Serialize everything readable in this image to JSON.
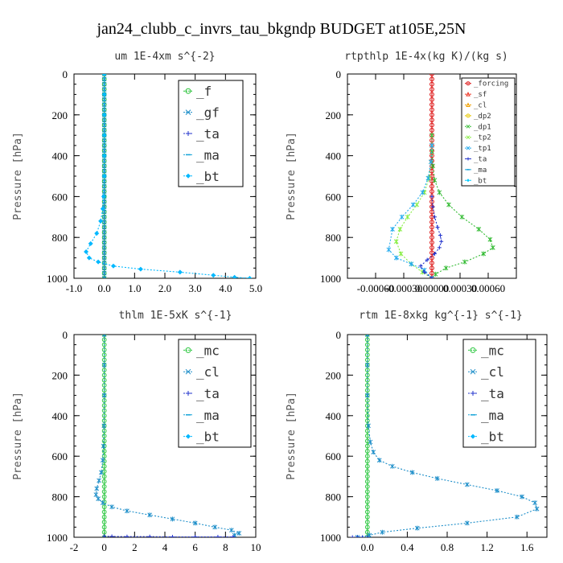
{
  "figure": {
    "title": "jan24_clubb_c_invrs_tau_bkgndp  BUDGET at105E,25N"
  },
  "colors": {
    "f": "#22c032",
    "gf": "#1d8ec9",
    "ta": "#2233cc",
    "ma": "#17a4d8",
    "bt": "#00b8ff",
    "mc": "#2ec842",
    "cl": "#1d8ec9",
    "forcing": "#dd1111",
    "sf": "#ee3322",
    "cl_rt": "#f0a000",
    "dp2": "#e8c800",
    "dp1": "#33bb33",
    "tp2": "#88ee44",
    "tp1": "#22aaee",
    "ta_rt": "#2233cc",
    "ma_rt": "#17a4d8",
    "bt_rt": "#00ccff"
  },
  "chart_data": [
    {
      "type": "line",
      "title": "um  1E-4xm s^{-2}",
      "ylabel": "Pressure [hPa]",
      "xlim": [
        -1.0,
        5.0
      ],
      "ylim": [
        1000,
        0
      ],
      "xticks": [
        -1.0,
        0.0,
        1.0,
        2.0,
        3.0,
        4.0,
        5.0
      ],
      "xtick_labels": [
        "-1.0",
        "0.0",
        "1.0",
        "2.0",
        "3.0",
        "4.0",
        "5.0"
      ],
      "yticks": [
        0,
        200,
        400,
        600,
        800,
        1000
      ],
      "ytick_labels": [
        "0",
        "200",
        "400",
        "600",
        "800",
        "1000"
      ],
      "legend": [
        "_f",
        "_gf",
        "_ta",
        "_ma",
        "_bt"
      ],
      "legend_position": "top-right",
      "series": [
        {
          "name": "_f",
          "color_key": "f",
          "marker": "circle",
          "x": [
            0,
            0,
            0,
            0,
            0,
            0,
            0,
            0,
            0,
            0,
            0,
            0,
            0,
            0,
            0,
            0,
            0,
            0,
            0,
            0,
            0,
            0,
            0,
            0,
            0,
            0,
            0,
            0,
            0,
            0,
            0,
            0,
            0,
            0,
            0,
            0,
            0,
            0,
            0,
            0,
            0
          ],
          "y": [
            0,
            25,
            50,
            75,
            100,
            125,
            150,
            175,
            200,
            225,
            250,
            275,
            300,
            325,
            350,
            375,
            400,
            425,
            450,
            475,
            500,
            525,
            550,
            575,
            600,
            625,
            650,
            675,
            700,
            725,
            750,
            775,
            800,
            825,
            850,
            875,
            900,
            925,
            950,
            975,
            1000
          ]
        },
        {
          "name": "_gf",
          "color_key": "gf",
          "marker": "star",
          "x": [
            0,
            0,
            0,
            0,
            0,
            0,
            0,
            0,
            0,
            0,
            0,
            0,
            0,
            0,
            0,
            0,
            0,
            0,
            0,
            0,
            0,
            0,
            0,
            0,
            0,
            0,
            0,
            0,
            0,
            0,
            0,
            0,
            0,
            0,
            0,
            0,
            0,
            0,
            0,
            0,
            0
          ],
          "y": [
            0,
            25,
            50,
            75,
            100,
            125,
            150,
            175,
            200,
            225,
            250,
            275,
            300,
            325,
            350,
            375,
            400,
            425,
            450,
            475,
            500,
            525,
            550,
            575,
            600,
            625,
            650,
            675,
            700,
            725,
            750,
            775,
            800,
            825,
            850,
            875,
            900,
            925,
            950,
            975,
            1000
          ]
        },
        {
          "name": "_bt",
          "color_key": "bt",
          "marker": "diamond",
          "x": [
            0,
            0,
            0,
            0,
            0,
            0,
            -0.02,
            -0.05,
            -0.12,
            -0.25,
            -0.45,
            -0.6,
            -0.5,
            -0.2,
            0.3,
            1.2,
            2.5,
            3.6,
            4.3,
            4.8
          ],
          "y": [
            0,
            100,
            200,
            300,
            400,
            500,
            600,
            660,
            720,
            780,
            830,
            870,
            900,
            920,
            940,
            955,
            970,
            985,
            995,
            1000
          ]
        }
      ]
    },
    {
      "type": "line",
      "title": "rtpthlp  1E-4x(kg K)/(kg s)",
      "ylabel": "Pressure [hPa]",
      "xlim": [
        -0.0009,
        0.0009
      ],
      "ylim": [
        1000,
        0
      ],
      "xticks": [
        -0.0006,
        -0.0003,
        0.0,
        0.0003,
        0.0006
      ],
      "xtick_labels": [
        "-0.00060",
        "-0.00030",
        "0.00000",
        "0.00030",
        "0.00060"
      ],
      "yticks": [
        0,
        200,
        400,
        600,
        800,
        1000
      ],
      "ytick_labels": [
        "0",
        "200",
        "400",
        "600",
        "800",
        "1000"
      ],
      "legend": [
        "_forcing",
        "_sf",
        "_cl",
        "_dp2",
        "_dp1",
        "_tp2",
        "_tp1",
        "_ta",
        "_ma",
        "_bt"
      ],
      "legend_position": "top-right",
      "series": [
        {
          "name": "_forcing",
          "color_key": "forcing",
          "marker": "circle",
          "x": [
            0,
            0,
            0,
            0,
            0,
            0,
            0,
            0,
            0,
            0,
            0,
            0,
            0,
            0,
            0,
            0,
            0,
            0,
            0,
            0,
            0,
            0,
            0,
            0,
            0,
            0,
            0,
            0,
            0,
            0,
            0,
            0,
            0,
            0,
            0,
            0,
            0,
            0,
            0,
            0,
            0
          ],
          "y": [
            0,
            25,
            50,
            75,
            100,
            125,
            150,
            175,
            200,
            225,
            250,
            275,
            300,
            325,
            350,
            375,
            400,
            425,
            450,
            475,
            500,
            525,
            550,
            575,
            600,
            625,
            650,
            675,
            700,
            725,
            750,
            775,
            800,
            825,
            850,
            875,
            900,
            925,
            950,
            975,
            1000
          ]
        },
        {
          "name": "_dp1",
          "color_key": "dp1",
          "marker": "star",
          "x": [
            0,
            0,
            1e-05,
            3e-05,
            8e-05,
            0.00018,
            0.00032,
            0.0005,
            0.00062,
            0.00065,
            0.00055,
            0.00035,
            0.00015,
            4e-05,
            0
          ],
          "y": [
            300,
            380,
            450,
            520,
            580,
            640,
            700,
            760,
            810,
            850,
            880,
            920,
            950,
            980,
            1000
          ]
        },
        {
          "name": "_tp2",
          "color_key": "tp2",
          "marker": "star",
          "x": [
            0,
            -1e-05,
            -3e-05,
            -8e-05,
            -0.00016,
            -0.00026,
            -0.00034,
            -0.00038,
            -0.00033,
            -0.00022,
            -0.0001,
            0
          ],
          "y": [
            350,
            430,
            510,
            580,
            640,
            700,
            760,
            820,
            880,
            930,
            970,
            1000
          ]
        },
        {
          "name": "_tp1",
          "color_key": "tp1",
          "marker": "star",
          "x": [
            0,
            -1e-05,
            -4e-05,
            -0.0001,
            -0.0002,
            -0.00032,
            -0.00042,
            -0.00046,
            -0.00038,
            -0.00022,
            -8e-05,
            0
          ],
          "y": [
            350,
            430,
            510,
            580,
            640,
            700,
            760,
            860,
            900,
            930,
            960,
            1000
          ]
        },
        {
          "name": "_ta",
          "color_key": "ta_rt",
          "marker": "plus",
          "x": [
            0,
            1e-05,
            3e-05,
            6e-05,
            9e-05,
            0.0001,
            8e-05,
            3e-05,
            -5e-05,
            -0.00012,
            -8e-05,
            0
          ],
          "y": [
            600,
            650,
            700,
            750,
            790,
            820,
            850,
            880,
            910,
            940,
            970,
            1000
          ]
        }
      ]
    },
    {
      "type": "line",
      "title": "thlm  1E-5xK s^{-1}",
      "ylabel": "Pressure [hPa]",
      "xlim": [
        -2,
        10
      ],
      "ylim": [
        1000,
        0
      ],
      "xticks": [
        -2,
        0,
        2,
        4,
        6,
        8,
        10
      ],
      "xtick_labels": [
        "-2",
        "0",
        "2",
        "4",
        "6",
        "8",
        "10"
      ],
      "yticks": [
        0,
        200,
        400,
        600,
        800,
        1000
      ],
      "ytick_labels": [
        "0",
        "200",
        "400",
        "600",
        "800",
        "1000"
      ],
      "legend": [
        "_mc",
        "_cl",
        "_ta",
        "_ma",
        "_bt"
      ],
      "legend_position": "top-right",
      "series": [
        {
          "name": "_mc",
          "color_key": "mc",
          "marker": "circle",
          "x": [
            0,
            0,
            0,
            0,
            0,
            0,
            0,
            0,
            0,
            0,
            0,
            0,
            0,
            0,
            0,
            0,
            0,
            0,
            0,
            0,
            0,
            0,
            0,
            0,
            0,
            0,
            0,
            0,
            0,
            0,
            0,
            0,
            0,
            0,
            0,
            0,
            0,
            0,
            0,
            0,
            0
          ],
          "y": [
            0,
            25,
            50,
            75,
            100,
            125,
            150,
            175,
            200,
            225,
            250,
            275,
            300,
            325,
            350,
            375,
            400,
            425,
            450,
            475,
            500,
            525,
            550,
            575,
            600,
            625,
            650,
            675,
            700,
            725,
            750,
            775,
            800,
            825,
            850,
            875,
            900,
            925,
            950,
            975,
            1000
          ]
        },
        {
          "name": "_cl",
          "color_key": "cl",
          "marker": "star",
          "x": [
            0,
            0,
            0,
            -0.02,
            -0.05,
            -0.1,
            -0.2,
            -0.35,
            -0.5,
            -0.55,
            -0.4,
            -0.1,
            0.5,
            1.5,
            3,
            4.5,
            6,
            7.3,
            8.4,
            8.9,
            8.6
          ],
          "y": [
            0,
            150,
            300,
            450,
            550,
            620,
            680,
            720,
            760,
            790,
            810,
            830,
            850,
            870,
            890,
            910,
            930,
            950,
            965,
            980,
            990
          ]
        },
        {
          "name": "_ta",
          "color_key": "ta",
          "marker": "plus",
          "x": [
            0,
            0.5,
            1.5,
            3,
            4.5,
            6,
            7.5,
            8.5
          ],
          "y": [
            995,
            996,
            997,
            997,
            998,
            998,
            998,
            998
          ]
        }
      ]
    },
    {
      "type": "line",
      "title": "rtm  1E-8xkg kg^{-1} s^{-1}",
      "ylabel": "Pressure [hPa]",
      "xlim": [
        -0.2,
        1.8
      ],
      "ylim": [
        1000,
        0
      ],
      "xticks": [
        0.0,
        0.4,
        0.8,
        1.2,
        1.6
      ],
      "xtick_labels": [
        "0.0",
        "0.4",
        "0.8",
        "1.2",
        "1.6"
      ],
      "yticks": [
        0,
        200,
        400,
        600,
        800,
        1000
      ],
      "ytick_labels": [
        "0",
        "200",
        "400",
        "600",
        "800",
        "1000"
      ],
      "legend": [
        "_mc",
        "_cl",
        "_ta",
        "_ma",
        "_bt"
      ],
      "legend_position": "top-right",
      "series": [
        {
          "name": "_mc",
          "color_key": "mc",
          "marker": "circle",
          "x": [
            0,
            0,
            0,
            0,
            0,
            0,
            0,
            0,
            0,
            0,
            0,
            0,
            0,
            0,
            0,
            0,
            0,
            0,
            0,
            0,
            0,
            0,
            0,
            0,
            0,
            0,
            0,
            0,
            0,
            0,
            0,
            0,
            0,
            0,
            0,
            0,
            0,
            0,
            0,
            0,
            0
          ],
          "y": [
            0,
            25,
            50,
            75,
            100,
            125,
            150,
            175,
            200,
            225,
            250,
            275,
            300,
            325,
            350,
            375,
            400,
            425,
            450,
            475,
            500,
            525,
            550,
            575,
            600,
            625,
            650,
            675,
            700,
            725,
            750,
            775,
            800,
            825,
            850,
            875,
            900,
            925,
            950,
            975,
            1000
          ]
        },
        {
          "name": "_cl",
          "color_key": "cl",
          "marker": "star",
          "x": [
            0,
            0,
            0,
            0.01,
            0.03,
            0.06,
            0.12,
            0.25,
            0.45,
            0.7,
            1.0,
            1.3,
            1.55,
            1.68,
            1.7,
            1.5,
            1.0,
            0.5,
            0.15,
            0.02,
            -0.1
          ],
          "y": [
            0,
            150,
            300,
            450,
            530,
            580,
            620,
            650,
            680,
            710,
            740,
            770,
            800,
            830,
            860,
            900,
            930,
            955,
            975,
            990,
            1000
          ]
        },
        {
          "name": "_ta",
          "color_key": "ta",
          "marker": "plus",
          "x": [
            -0.15,
            -0.1,
            -0.05,
            0
          ],
          "y": [
            1000,
            1000,
            1000,
            1000
          ]
        }
      ]
    }
  ]
}
